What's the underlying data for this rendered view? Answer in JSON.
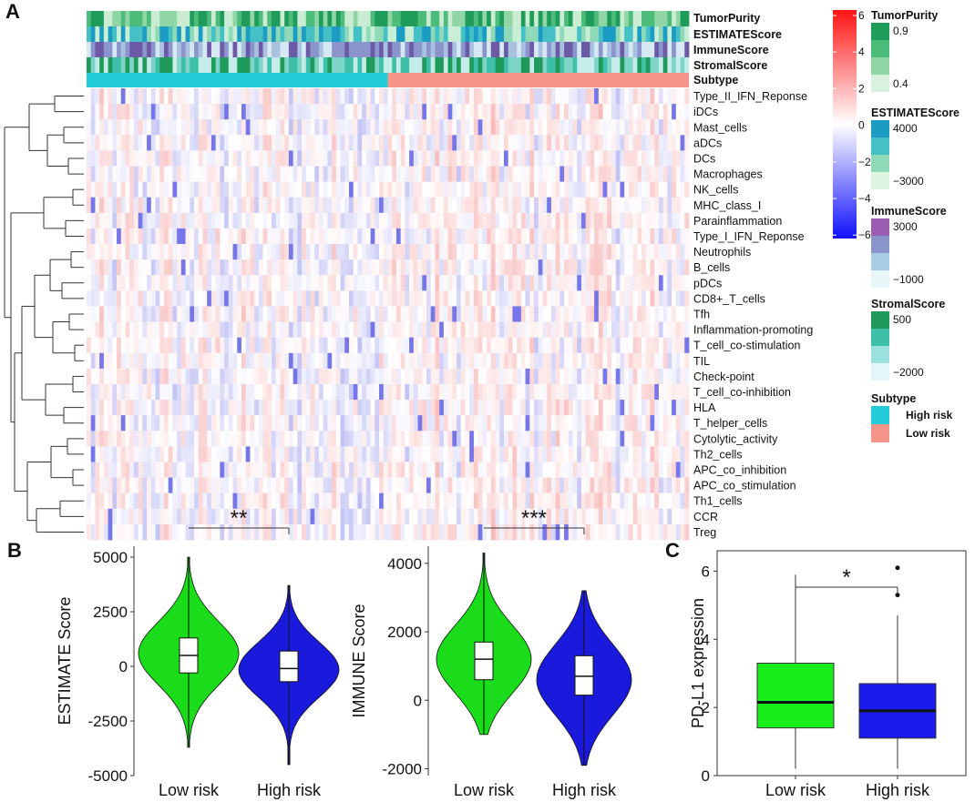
{
  "figure": {
    "panel_labels": [
      "A",
      "B",
      "C"
    ],
    "colors": {
      "high_risk": "#22ccd8",
      "low_risk": "#f5958a",
      "violin_low": "#1adc1a",
      "violin_high": "#1a1adc",
      "box_low": "#1aee1a",
      "box_high": "#1a1aee",
      "heat_neg": "#1a1ad8",
      "heat_mid": "#ffffff",
      "heat_pos": "#e81818"
    }
  },
  "chart_data": [
    {
      "type": "heatmap",
      "panel": "A",
      "rows": [
        "Type_II_IFN_Reponse",
        "iDCs",
        "Mast_cells",
        "aDCs",
        "DCs",
        "Macrophages",
        "NK_cells",
        "MHC_class_I",
        "Parainflammation",
        "Type_I_IFN_Reponse",
        "Neutrophils",
        "B_cells",
        "pDCs",
        "CD8+_T_cells",
        "Tfh",
        "Inflammation-promoting",
        "T_cell_co-stimulation",
        "TIL",
        "Check-point",
        "T_cell_co-inhibition",
        "HLA",
        "T_helper_cells",
        "Cytolytic_activity",
        "Th2_cells",
        "APC_co_inhibition",
        "APC_co_stimulation",
        "Th1_cells",
        "CCR",
        "Treg"
      ],
      "annotations": [
        "TumorPurity",
        "ESTIMATEScore",
        "ImmuneScore",
        "StromalScore",
        "Subtype"
      ],
      "subtype_groups": [
        "High risk",
        "Low risk"
      ],
      "n_samples": 140,
      "high_risk_fraction": 0.5,
      "color_scale": {
        "min": -6,
        "max": 6,
        "ticks": [
          "6",
          "4",
          "2",
          "0",
          "−2",
          "−4",
          "−6"
        ]
      },
      "legends": [
        {
          "title": "TumorPurity",
          "labels": [
            "0.9",
            "0.4"
          ],
          "colors": [
            "#1f9b5a",
            "#4dbb7a",
            "#8fd6a4",
            "#d8f2df"
          ]
        },
        {
          "title": "ESTIMATEScore",
          "labels": [
            "4000",
            "−3000"
          ],
          "colors": [
            "#1c9cc2",
            "#45c1c6",
            "#8fd9b8",
            "#dff4e0"
          ]
        },
        {
          "title": "ImmuneScore",
          "labels": [
            "3000",
            "−1000"
          ],
          "colors": [
            "#9a5db0",
            "#8b95cc",
            "#a8cde2",
            "#e8f6f8"
          ]
        },
        {
          "title": "StromalScore",
          "labels": [
            "500",
            "−2000"
          ],
          "colors": [
            "#1f9a5a",
            "#3dbfa8",
            "#9be0dc",
            "#e4f6f8"
          ]
        },
        {
          "title": "Subtype",
          "labels": [
            "High risk",
            "Low risk"
          ],
          "colors": [
            "#22ccd8",
            "#f5958a"
          ]
        }
      ]
    },
    {
      "type": "violin",
      "panel": "B-left",
      "categories": [
        "Low risk",
        "High risk"
      ],
      "ylabel": "ESTIMATE Score",
      "ylim": [
        -5000,
        5500
      ],
      "yticks": [
        5000,
        2500,
        0,
        -2500,
        -5000
      ],
      "ytick_labels": [
        "5000",
        "2500",
        "0",
        "-2500",
        "-5000"
      ],
      "significance": "**",
      "series": [
        {
          "name": "Low risk",
          "min": -3700,
          "max": 5000,
          "q1": -300,
          "median": 500,
          "q3": 1300,
          "mode": 600
        },
        {
          "name": "High risk",
          "min": -4500,
          "max": 3700,
          "q1": -700,
          "median": -100,
          "q3": 700,
          "mode": -150
        }
      ]
    },
    {
      "type": "violin",
      "panel": "B-right",
      "categories": [
        "Low risk",
        "High risk"
      ],
      "ylabel": "IMMUNE Score",
      "ylim": [
        -2200,
        4500
      ],
      "yticks": [
        4000,
        2000,
        0,
        -2000
      ],
      "ytick_labels": [
        "4000",
        "2000",
        "0",
        "-2000"
      ],
      "significance": "***",
      "series": [
        {
          "name": "Low risk",
          "min": -1000,
          "max": 4300,
          "q1": 600,
          "median": 1200,
          "q3": 1700,
          "mode": 1200
        },
        {
          "name": "High risk",
          "min": -1900,
          "max": 3200,
          "q1": 150,
          "median": 700,
          "q3": 1300,
          "mode": 600
        }
      ]
    },
    {
      "type": "box",
      "panel": "C",
      "categories": [
        "Low risk",
        "High risk"
      ],
      "ylabel": "PD-L1 expression",
      "ylim": [
        0,
        6.6
      ],
      "yticks": [
        0,
        2,
        4,
        6
      ],
      "ytick_labels": [
        "0",
        "2",
        "4",
        "6"
      ],
      "significance": "*",
      "series": [
        {
          "name": "Low risk",
          "whisker_low": 0.2,
          "q1": 1.4,
          "median": 2.15,
          "q3": 3.3,
          "whisker_high": 5.9,
          "outliers": []
        },
        {
          "name": "High risk",
          "whisker_low": 0.2,
          "q1": 1.1,
          "median": 1.9,
          "q3": 2.7,
          "whisker_high": 4.7,
          "outliers": [
            5.3,
            6.1
          ]
        }
      ]
    }
  ]
}
